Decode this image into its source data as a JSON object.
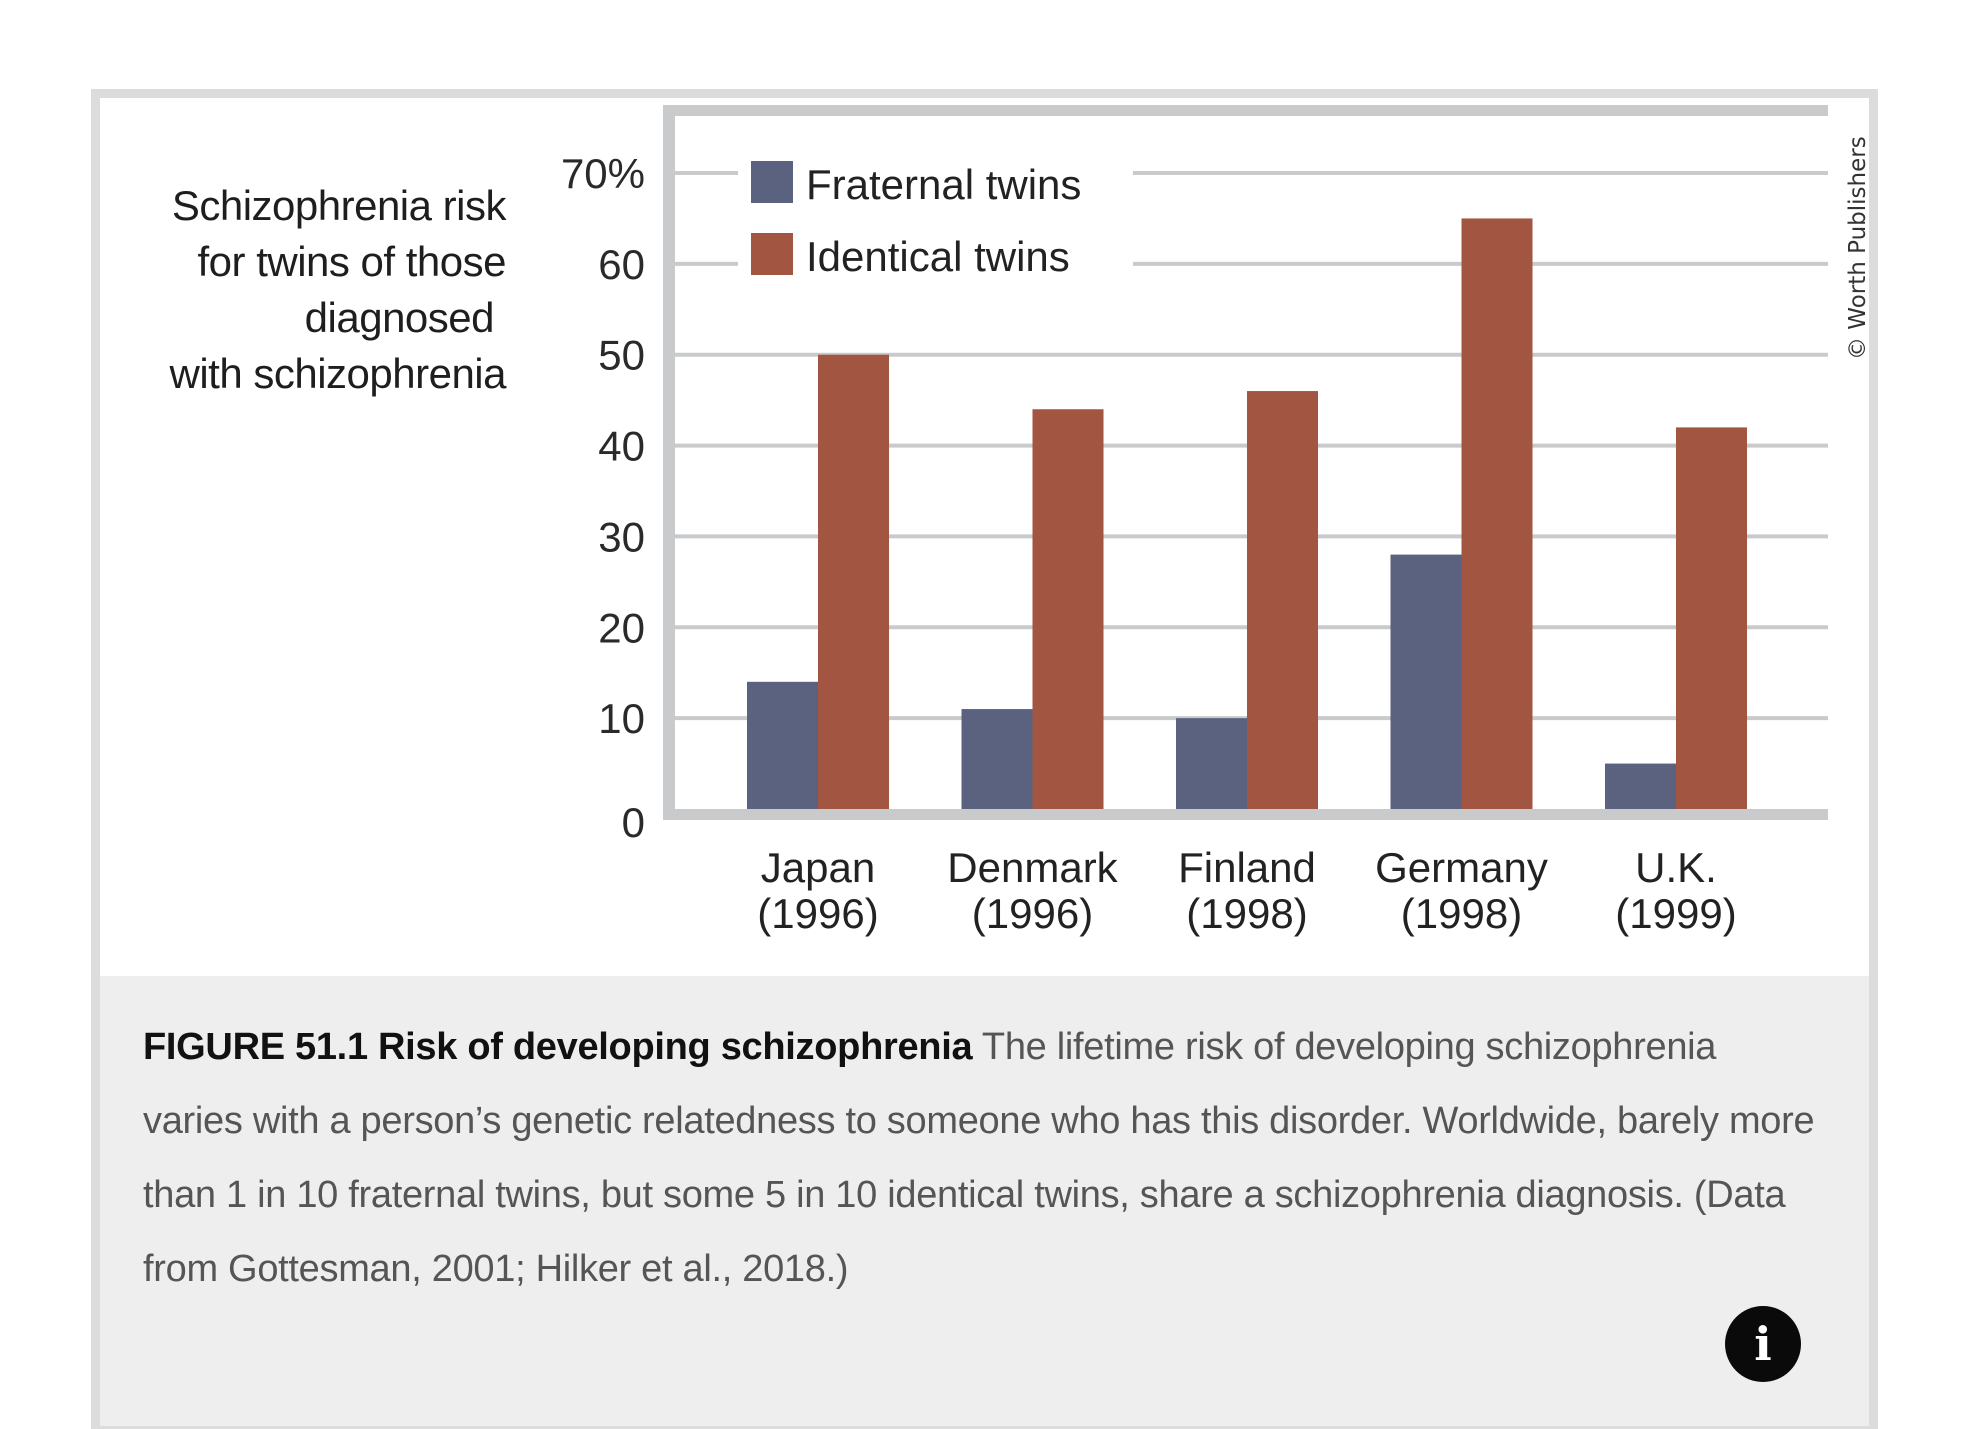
{
  "chart_data": {
    "type": "bar",
    "title": "Schizophrenia risk for twins of those diagnosed with schizophrenia",
    "title_lines": [
      "Schizophrenia risk",
      "for twins of those",
      "diagnosed",
      "with schizophrenia"
    ],
    "xlabel": "",
    "ylabel": "Schizophrenia risk (%)",
    "ylim": [
      0,
      70
    ],
    "yticks": [
      0,
      10,
      20,
      30,
      40,
      50,
      60,
      70
    ],
    "ytick_labels": [
      "0",
      "10",
      "20",
      "30",
      "40",
      "50",
      "60",
      "70%"
    ],
    "grid": true,
    "legend_position": "top-left",
    "categories": [
      "Japan (1996)",
      "Denmark (1996)",
      "Finland (1998)",
      "Germany (1998)",
      "U.K. (1999)"
    ],
    "category_lines": [
      [
        "Japan",
        "(1996)"
      ],
      [
        "Denmark",
        "(1996)"
      ],
      [
        "Finland",
        "(1998)"
      ],
      [
        "Germany",
        "(1998)"
      ],
      [
        "U.K.",
        "(1999)"
      ]
    ],
    "series": [
      {
        "name": "Fraternal twins",
        "color": "#5a6280",
        "values": [
          14,
          11,
          10,
          28,
          5
        ]
      },
      {
        "name": "Identical twins",
        "color": "#a25541",
        "values": [
          50,
          44,
          46,
          65,
          42
        ]
      }
    ]
  },
  "copyright": "© Worth Publishers",
  "caption": {
    "figure_title": "FIGURE 51.1 Risk of developing schizophrenia",
    "body": "The lifetime risk of developing schizophrenia varies with a person’s genetic relatedness to someone who has this disorder. Worldwide, barely more than 1 in 10 fraternal twins, but some 5 in 10 identical twins, share a schizophrenia diagnosis. (Data from Gottesman, 2001; Hilker et al., 2018.)"
  },
  "info_button": {
    "icon": "info-icon",
    "label": "i"
  }
}
